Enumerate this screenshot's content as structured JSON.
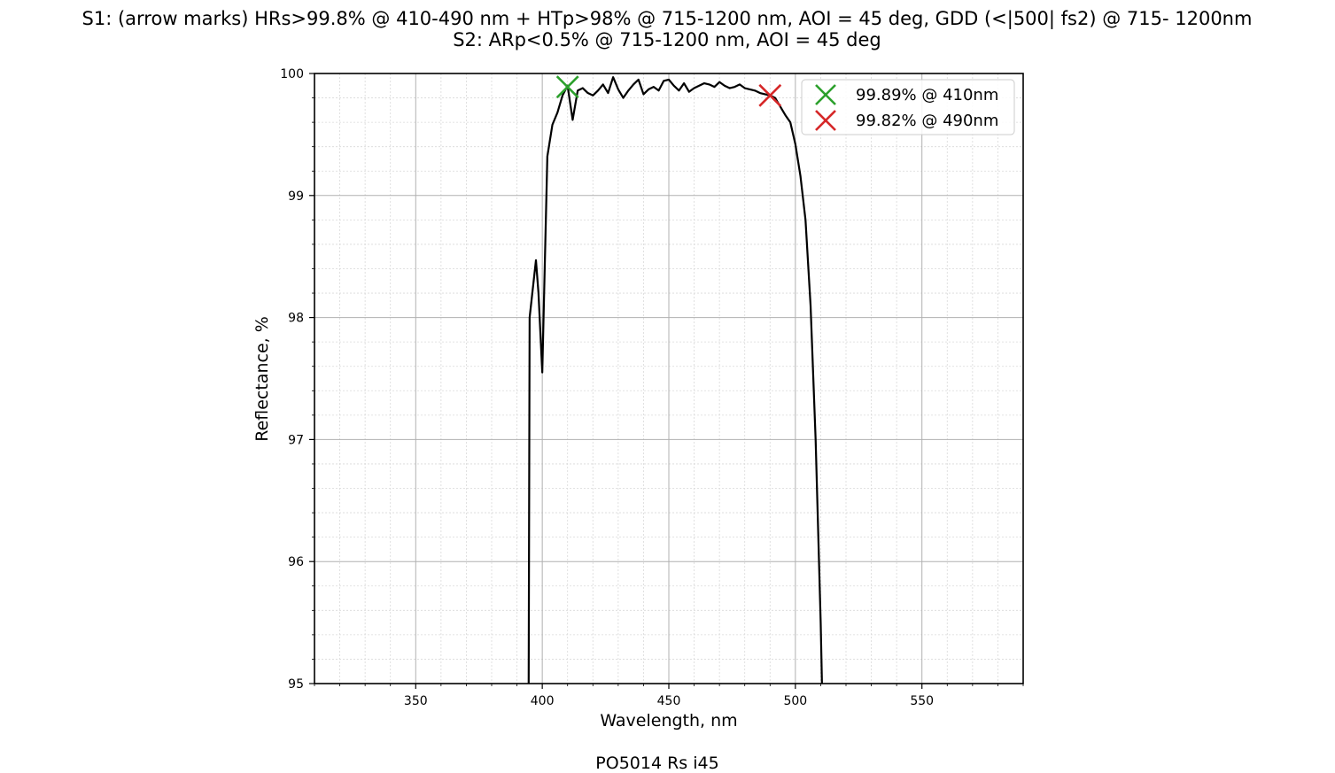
{
  "chart_data": {
    "type": "line",
    "title": "S1: (arrow marks) HRs>99.8% @ 410-490 nm + HTp>98% @ 715-1200 nm, AOI = 45 deg, GDD (<|500| fs2) @ 715- 1200nm",
    "subtitle": "S2: ARp<0.5% @ 715-1200 nm, AOI = 45 deg",
    "xlabel": "Wavelength, nm",
    "ylabel": "Reflectance, %",
    "caption": "PO5014 Rs i45",
    "xlim": [
      310,
      590
    ],
    "ylim": [
      95,
      100
    ],
    "x_major_ticks": [
      350,
      400,
      450,
      500,
      550
    ],
    "x_tick_labels": [
      "350",
      "400",
      "450",
      "500",
      "550"
    ],
    "y_major_ticks": [
      95,
      96,
      97,
      98,
      99,
      100
    ],
    "y_tick_labels": [
      "95",
      "96",
      "97",
      "98",
      "99",
      "100"
    ],
    "x_minor_step": 10,
    "y_minor_step": 0.2,
    "grid": true,
    "legend_position": "top-right",
    "series": [
      {
        "color": "#000000",
        "x": [
          394.5,
          395,
          397.5,
          398.5,
          400,
          402,
          404,
          406,
          408,
          410,
          412,
          414,
          416,
          418,
          420,
          422,
          424,
          426,
          428,
          430,
          432,
          434,
          436,
          438,
          440,
          442,
          444,
          446,
          448,
          450,
          452,
          454,
          456,
          458,
          460,
          462,
          464,
          466,
          468,
          470,
          472,
          474,
          476,
          478,
          480,
          482,
          484,
          486,
          488,
          490,
          492,
          494,
          496,
          498,
          500,
          502,
          504,
          506,
          508,
          510,
          511.5
        ],
        "y": [
          94.0,
          98.0,
          98.47,
          98.2,
          97.55,
          99.32,
          99.58,
          99.68,
          99.82,
          99.9,
          99.62,
          99.86,
          99.88,
          99.84,
          99.82,
          99.86,
          99.91,
          99.84,
          99.97,
          99.87,
          99.8,
          99.86,
          99.91,
          99.95,
          99.83,
          99.87,
          99.89,
          99.86,
          99.94,
          99.95,
          99.9,
          99.86,
          99.92,
          99.85,
          99.88,
          99.9,
          99.92,
          99.91,
          99.89,
          99.93,
          99.9,
          99.88,
          99.89,
          99.91,
          99.88,
          99.87,
          99.86,
          99.84,
          99.83,
          99.82,
          99.8,
          99.73,
          99.66,
          99.6,
          99.42,
          99.16,
          98.8,
          98.1,
          97.0,
          95.5,
          94.0
        ]
      }
    ],
    "markers": [
      {
        "x": 410,
        "y": 99.89,
        "color": "#2ca02c",
        "symbol": "x",
        "label": "99.89% @ 410nm"
      },
      {
        "x": 490,
        "y": 99.82,
        "color": "#d62728",
        "symbol": "x",
        "label": "99.82% @ 490nm"
      }
    ]
  }
}
